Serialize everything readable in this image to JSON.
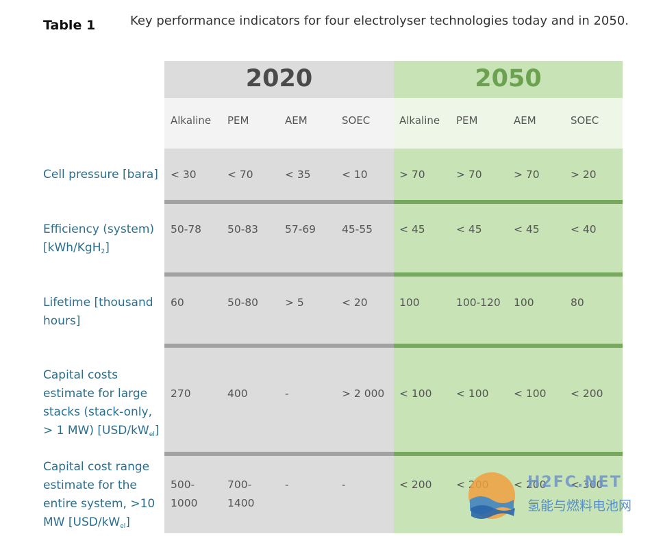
{
  "table_label": "Table 1",
  "caption": "Key performance indicators for four electrolyser technologies today and in 2050.",
  "years": [
    "2020",
    "2050"
  ],
  "columns": [
    "Alkaline",
    "PEM",
    "AEM",
    "SOEC",
    "Alkaline",
    "PEM",
    "AEM",
    "SOEC"
  ],
  "rows": [
    {
      "label": "Cell pressure [bara]",
      "values": [
        "< 30",
        "< 70",
        "< 35",
        "< 10",
        "> 70",
        "> 70",
        "> 70",
        "> 20"
      ]
    },
    {
      "label": "Efficiency (system) [kWh/KgH",
      "label_sub": "2",
      "label_tail": "]",
      "values": [
        "50-78",
        "50-83",
        "57-69",
        "45-55",
        "< 45",
        "< 45",
        "< 45",
        "< 40"
      ]
    },
    {
      "label": "Lifetime [thousand hours]",
      "values": [
        "60",
        "50-80",
        "> 5",
        "< 20",
        "100",
        "100-120",
        "100",
        "80"
      ]
    },
    {
      "label": "Capital costs estimate for large stacks (stack-only, > 1 MW) [USD/kW",
      "label_sub": "el",
      "label_tail": "]",
      "values": [
        "270",
        "400",
        "-",
        "> 2 000",
        "< 100",
        "< 100",
        "< 100",
        "< 200"
      ]
    },
    {
      "label": "Capital cost range estimate for the entire system, >10 MW [USD/kW",
      "label_sub": "el",
      "label_tail": "]",
      "values": [
        "500-\n1000",
        "700-\n1400",
        "-",
        "-",
        "< 200",
        "< 200",
        "< 200",
        "< 300"
      ]
    }
  ],
  "watermark": {
    "brand": "H2FC.NET",
    "subtitle": "氢能与燃料电池网"
  }
}
